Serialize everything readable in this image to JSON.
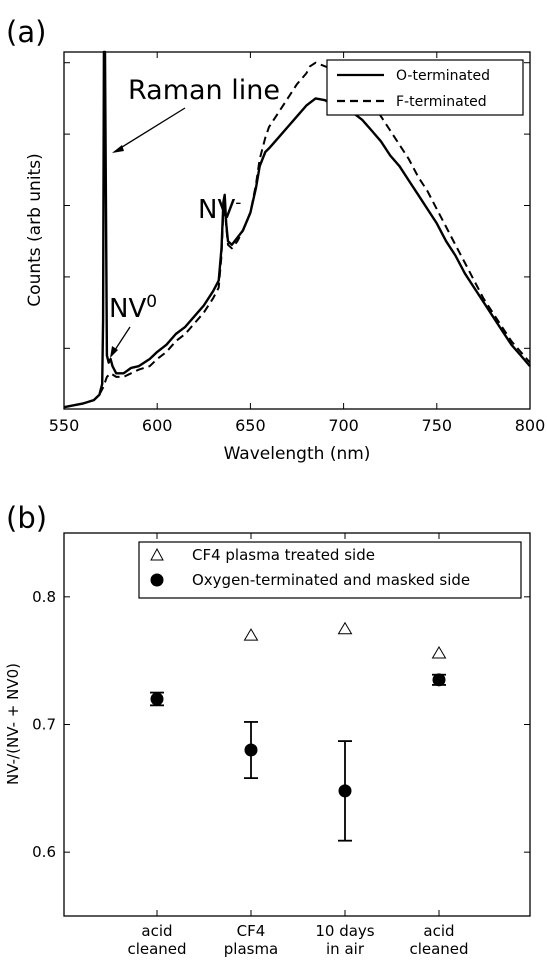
{
  "chart_data": [
    {
      "panel_label": "(a)",
      "type": "line",
      "xlabel": "Wavelength (nm)",
      "ylabel": "Counts (arb units)",
      "xlim": [
        550,
        800
      ],
      "ylim": [
        0,
        100
      ],
      "x_ticks": [
        550,
        600,
        650,
        700,
        750,
        800
      ],
      "y_ticks_unlabeled": [
        17,
        37,
        57,
        77,
        97
      ],
      "legend_position": "top-right",
      "series": [
        {
          "name": "O-terminated",
          "style": "solid",
          "points": [
            [
              550,
              0.5
            ],
            [
              560,
              1.5
            ],
            [
              566,
              2.5
            ],
            [
              569,
              4
            ],
            [
              570.5,
              7
            ],
            [
              571,
              25
            ],
            [
              571.4,
              100
            ],
            [
              572,
              100
            ],
            [
              572.5,
              60
            ],
            [
              573,
              15
            ],
            [
              574,
              13
            ],
            [
              575,
              14
            ],
            [
              576,
              12
            ],
            [
              578,
              10
            ],
            [
              582,
              10
            ],
            [
              586,
              11.5
            ],
            [
              590,
              12
            ],
            [
              596,
              14
            ],
            [
              600,
              16
            ],
            [
              605,
              18
            ],
            [
              610,
              21
            ],
            [
              615,
              23
            ],
            [
              620,
              26
            ],
            [
              625,
              29
            ],
            [
              630,
              33
            ],
            [
              633,
              36
            ],
            [
              634.5,
              45
            ],
            [
              635.5,
              58
            ],
            [
              636.2,
              60
            ],
            [
              637,
              52
            ],
            [
              638,
              47
            ],
            [
              640,
              46
            ],
            [
              643,
              48
            ],
            [
              646,
              50
            ],
            [
              650,
              55
            ],
            [
              653,
              62
            ],
            [
              655,
              68
            ],
            [
              658,
              72
            ],
            [
              660,
              73
            ],
            [
              665,
              76
            ],
            [
              670,
              79
            ],
            [
              675,
              82
            ],
            [
              680,
              85
            ],
            [
              685,
              87
            ],
            [
              690,
              86.5
            ],
            [
              695,
              85
            ],
            [
              700,
              85
            ],
            [
              705,
              83
            ],
            [
              710,
              81
            ],
            [
              715,
              78
            ],
            [
              720,
              75
            ],
            [
              725,
              71
            ],
            [
              730,
              68
            ],
            [
              735,
              64
            ],
            [
              740,
              60
            ],
            [
              745,
              56
            ],
            [
              750,
              52
            ],
            [
              755,
              47
            ],
            [
              760,
              43
            ],
            [
              765,
              38
            ],
            [
              770,
              34
            ],
            [
              775,
              30
            ],
            [
              780,
              26
            ],
            [
              785,
              22
            ],
            [
              790,
              18
            ],
            [
              795,
              15
            ],
            [
              800,
              12
            ]
          ]
        },
        {
          "name": "F-terminated",
          "style": "dashed",
          "points": [
            [
              550,
              0.5
            ],
            [
              560,
              1.5
            ],
            [
              566,
              2.5
            ],
            [
              569,
              4
            ],
            [
              571,
              6
            ],
            [
              573,
              9
            ],
            [
              575,
              10
            ],
            [
              578,
              9
            ],
            [
              582,
              9
            ],
            [
              586,
              10
            ],
            [
              590,
              11
            ],
            [
              596,
              12
            ],
            [
              600,
              14
            ],
            [
              605,
              16
            ],
            [
              610,
              19
            ],
            [
              615,
              21
            ],
            [
              620,
              24
            ],
            [
              625,
              27
            ],
            [
              630,
              31
            ],
            [
              633,
              34
            ],
            [
              634.5,
              43
            ],
            [
              635.5,
              56
            ],
            [
              636.2,
              58
            ],
            [
              637,
              51
            ],
            [
              638,
              46
            ],
            [
              640,
              45
            ],
            [
              643,
              47
            ],
            [
              646,
              50
            ],
            [
              650,
              55
            ],
            [
              653,
              63
            ],
            [
              655,
              70
            ],
            [
              658,
              76
            ],
            [
              660,
              79
            ],
            [
              665,
              83
            ],
            [
              670,
              87
            ],
            [
              675,
              91
            ],
            [
              680,
              94
            ],
            [
              682,
              96
            ],
            [
              685,
              97
            ],
            [
              690,
              96
            ],
            [
              695,
              95
            ],
            [
              700,
              94
            ],
            [
              705,
              92
            ],
            [
              710,
              89
            ],
            [
              715,
              86
            ],
            [
              720,
              82
            ],
            [
              725,
              78
            ],
            [
              730,
              74
            ],
            [
              735,
              70
            ],
            [
              740,
              65
            ],
            [
              745,
              61
            ],
            [
              750,
              56
            ],
            [
              755,
              51
            ],
            [
              760,
              46
            ],
            [
              765,
              41
            ],
            [
              770,
              36
            ],
            [
              775,
              31
            ],
            [
              780,
              27
            ],
            [
              785,
              23
            ],
            [
              790,
              19
            ],
            [
              795,
              16
            ],
            [
              800,
              13
            ]
          ]
        }
      ],
      "annotations": [
        {
          "text": "Raman line",
          "arrow": true
        },
        {
          "text_main": "NV",
          "text_sup": "0",
          "arrow": true
        },
        {
          "text_main": "NV",
          "text_sup": "-",
          "arrow": false
        }
      ]
    },
    {
      "panel_label": "(b)",
      "type": "scatter",
      "ylabel": "NV-/(NV- + NV0)",
      "ylim": [
        0.55,
        0.85
      ],
      "y_ticks": [
        "0.6",
        "0.7",
        "0.8"
      ],
      "y_tick_values": [
        0.6,
        0.7,
        0.8
      ],
      "categories": [
        [
          "acid",
          "cleaned"
        ],
        [
          "CF4",
          "plasma"
        ],
        [
          "10 days",
          "in air"
        ],
        [
          "acid",
          "cleaned"
        ]
      ],
      "legend_position": "top-center",
      "series": [
        {
          "name": "CF4 plasma treated side",
          "marker": "open-triangle",
          "values": [
            null,
            0.77,
            0.775,
            0.756
          ]
        },
        {
          "name": "Oxygen-terminated and masked side",
          "marker": "filled-circle",
          "values": [
            0.72,
            0.68,
            0.648,
            0.735
          ],
          "error": [
            0.005,
            0.022,
            0.039,
            0.004
          ]
        }
      ]
    }
  ]
}
